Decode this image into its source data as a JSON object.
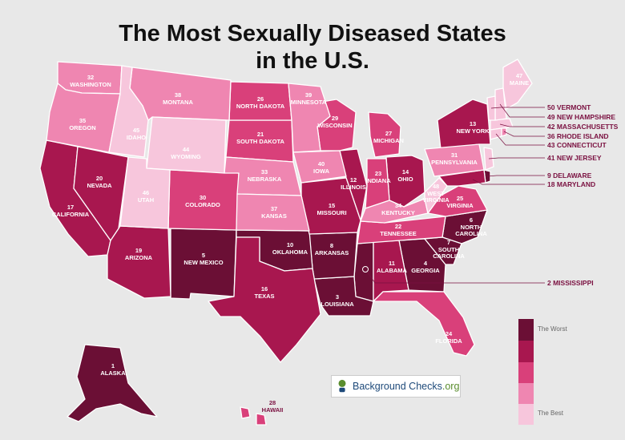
{
  "title": {
    "line1": "The Most Sexually Diseased States",
    "line2": "in the U.S."
  },
  "colors": {
    "rank_1_10": "#6b0f35",
    "rank_11_20": "#a8174f",
    "rank_21_30": "#d9407a",
    "rank_31_40": "#ef86b1",
    "rank_41_50": "#f7c6dc",
    "background": "#e8e8e8"
  },
  "legend": {
    "top_label": "The Worst",
    "bottom_label": "The Best"
  },
  "brand": {
    "name_part1": "Background Checks",
    "name_part2": ".org",
    "icon": "magnifier-person-icon"
  },
  "states": [
    {
      "rank": 1,
      "name": "ALASKA"
    },
    {
      "rank": 2,
      "name": "MISSISSIPPI"
    },
    {
      "rank": 3,
      "name": "LOUISIANA"
    },
    {
      "rank": 4,
      "name": "GEORGIA"
    },
    {
      "rank": 5,
      "name": "NEW MEXICO"
    },
    {
      "rank": 6,
      "name": "NORTH CAROLINA"
    },
    {
      "rank": 7,
      "name": "SOUTH CAROLINA"
    },
    {
      "rank": 8,
      "name": "ARKANSAS"
    },
    {
      "rank": 9,
      "name": "DELAWARE"
    },
    {
      "rank": 10,
      "name": "OKLAHOMA"
    },
    {
      "rank": 11,
      "name": "ALABAMA"
    },
    {
      "rank": 12,
      "name": "ILLINOIS"
    },
    {
      "rank": 13,
      "name": "NEW YORK"
    },
    {
      "rank": 14,
      "name": "OHIO"
    },
    {
      "rank": 15,
      "name": "MISSOURI"
    },
    {
      "rank": 16,
      "name": "TEXAS"
    },
    {
      "rank": 17,
      "name": "CALIFORNIA"
    },
    {
      "rank": 18,
      "name": "MARYLAND"
    },
    {
      "rank": 19,
      "name": "ARIZONA"
    },
    {
      "rank": 20,
      "name": "NEVADA"
    },
    {
      "rank": 21,
      "name": "SOUTH DAKOTA"
    },
    {
      "rank": 22,
      "name": "TENNESSEE"
    },
    {
      "rank": 23,
      "name": "INDIANA"
    },
    {
      "rank": 24,
      "name": "FLORIDA"
    },
    {
      "rank": 25,
      "name": "VIRGINIA"
    },
    {
      "rank": 26,
      "name": "NORTH DAKOTA"
    },
    {
      "rank": 27,
      "name": "MICHIGAN"
    },
    {
      "rank": 28,
      "name": "HAWAII"
    },
    {
      "rank": 29,
      "name": "WISCONSIN"
    },
    {
      "rank": 30,
      "name": "COLORADO"
    },
    {
      "rank": 31,
      "name": "PENNSYLVANIA"
    },
    {
      "rank": 32,
      "name": "WASHINGTON"
    },
    {
      "rank": 33,
      "name": "NEBRASKA"
    },
    {
      "rank": 34,
      "name": "KENTUCKY"
    },
    {
      "rank": 35,
      "name": "OREGON"
    },
    {
      "rank": 36,
      "name": "RHODE ISLAND"
    },
    {
      "rank": 37,
      "name": "KANSAS"
    },
    {
      "rank": 38,
      "name": "MONTANA"
    },
    {
      "rank": 39,
      "name": "MINNESOTA"
    },
    {
      "rank": 40,
      "name": "IOWA"
    },
    {
      "rank": 41,
      "name": "NEW JERSEY"
    },
    {
      "rank": 42,
      "name": "MASSACHUSETTS"
    },
    {
      "rank": 43,
      "name": "CONNECTICUT"
    },
    {
      "rank": 44,
      "name": "WYOMING"
    },
    {
      "rank": 45,
      "name": "IDAHO"
    },
    {
      "rank": 46,
      "name": "UTAH"
    },
    {
      "rank": 47,
      "name": "MAINE"
    },
    {
      "rank": 48,
      "name": "WEST VIRGINIA"
    },
    {
      "rank": 49,
      "name": "NEW HAMPSHIRE"
    },
    {
      "rank": 50,
      "name": "VERMONT"
    }
  ]
}
